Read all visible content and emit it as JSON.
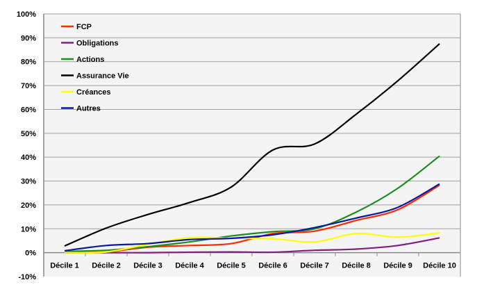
{
  "chart_data": {
    "type": "line",
    "title": "",
    "xlabel": "",
    "ylabel": "",
    "ylim": [
      -10,
      100
    ],
    "yticks": [
      "-10%",
      "0%",
      "10%",
      "20%",
      "30%",
      "40%",
      "50%",
      "60%",
      "70%",
      "80%",
      "90%",
      "100%"
    ],
    "grid": true,
    "legend_position": "top-left",
    "categories": [
      "Décile 1",
      "Décile 2",
      "Décile 3",
      "Décile 4",
      "Décile 5",
      "Décile 6",
      "Décile 7",
      "Décile 8",
      "Décile 9",
      "Décile 10"
    ],
    "series": [
      {
        "name": "FCP",
        "color": "#ff2a00",
        "values": [
          0,
          0.3,
          2.3,
          3,
          3.8,
          8,
          9,
          13.5,
          18,
          28.3
        ]
      },
      {
        "name": "Obligations",
        "color": "#7f1f7f",
        "values": [
          0,
          0,
          0,
          0.2,
          0.3,
          0.2,
          1,
          1.5,
          3,
          6.2
        ]
      },
      {
        "name": "Actions",
        "color": "#1e8c1e",
        "values": [
          0.5,
          1,
          2.5,
          4.5,
          7,
          8.8,
          10,
          17,
          27,
          40.5
        ]
      },
      {
        "name": "Assurance Vie",
        "color": "#000000",
        "values": [
          2.8,
          10.3,
          16,
          21,
          27.5,
          43,
          45.5,
          58,
          72,
          87.5
        ]
      },
      {
        "name": "Créances",
        "color": "#ffff00",
        "values": [
          0,
          0.3,
          3.5,
          6.3,
          6,
          5.8,
          4.5,
          8,
          6.5,
          8.3
        ]
      },
      {
        "name": "Autres",
        "color": "#0a1aa0",
        "values": [
          0.8,
          3,
          3.8,
          5.5,
          6,
          7.5,
          10.5,
          14.5,
          19,
          28.8
        ]
      }
    ]
  }
}
